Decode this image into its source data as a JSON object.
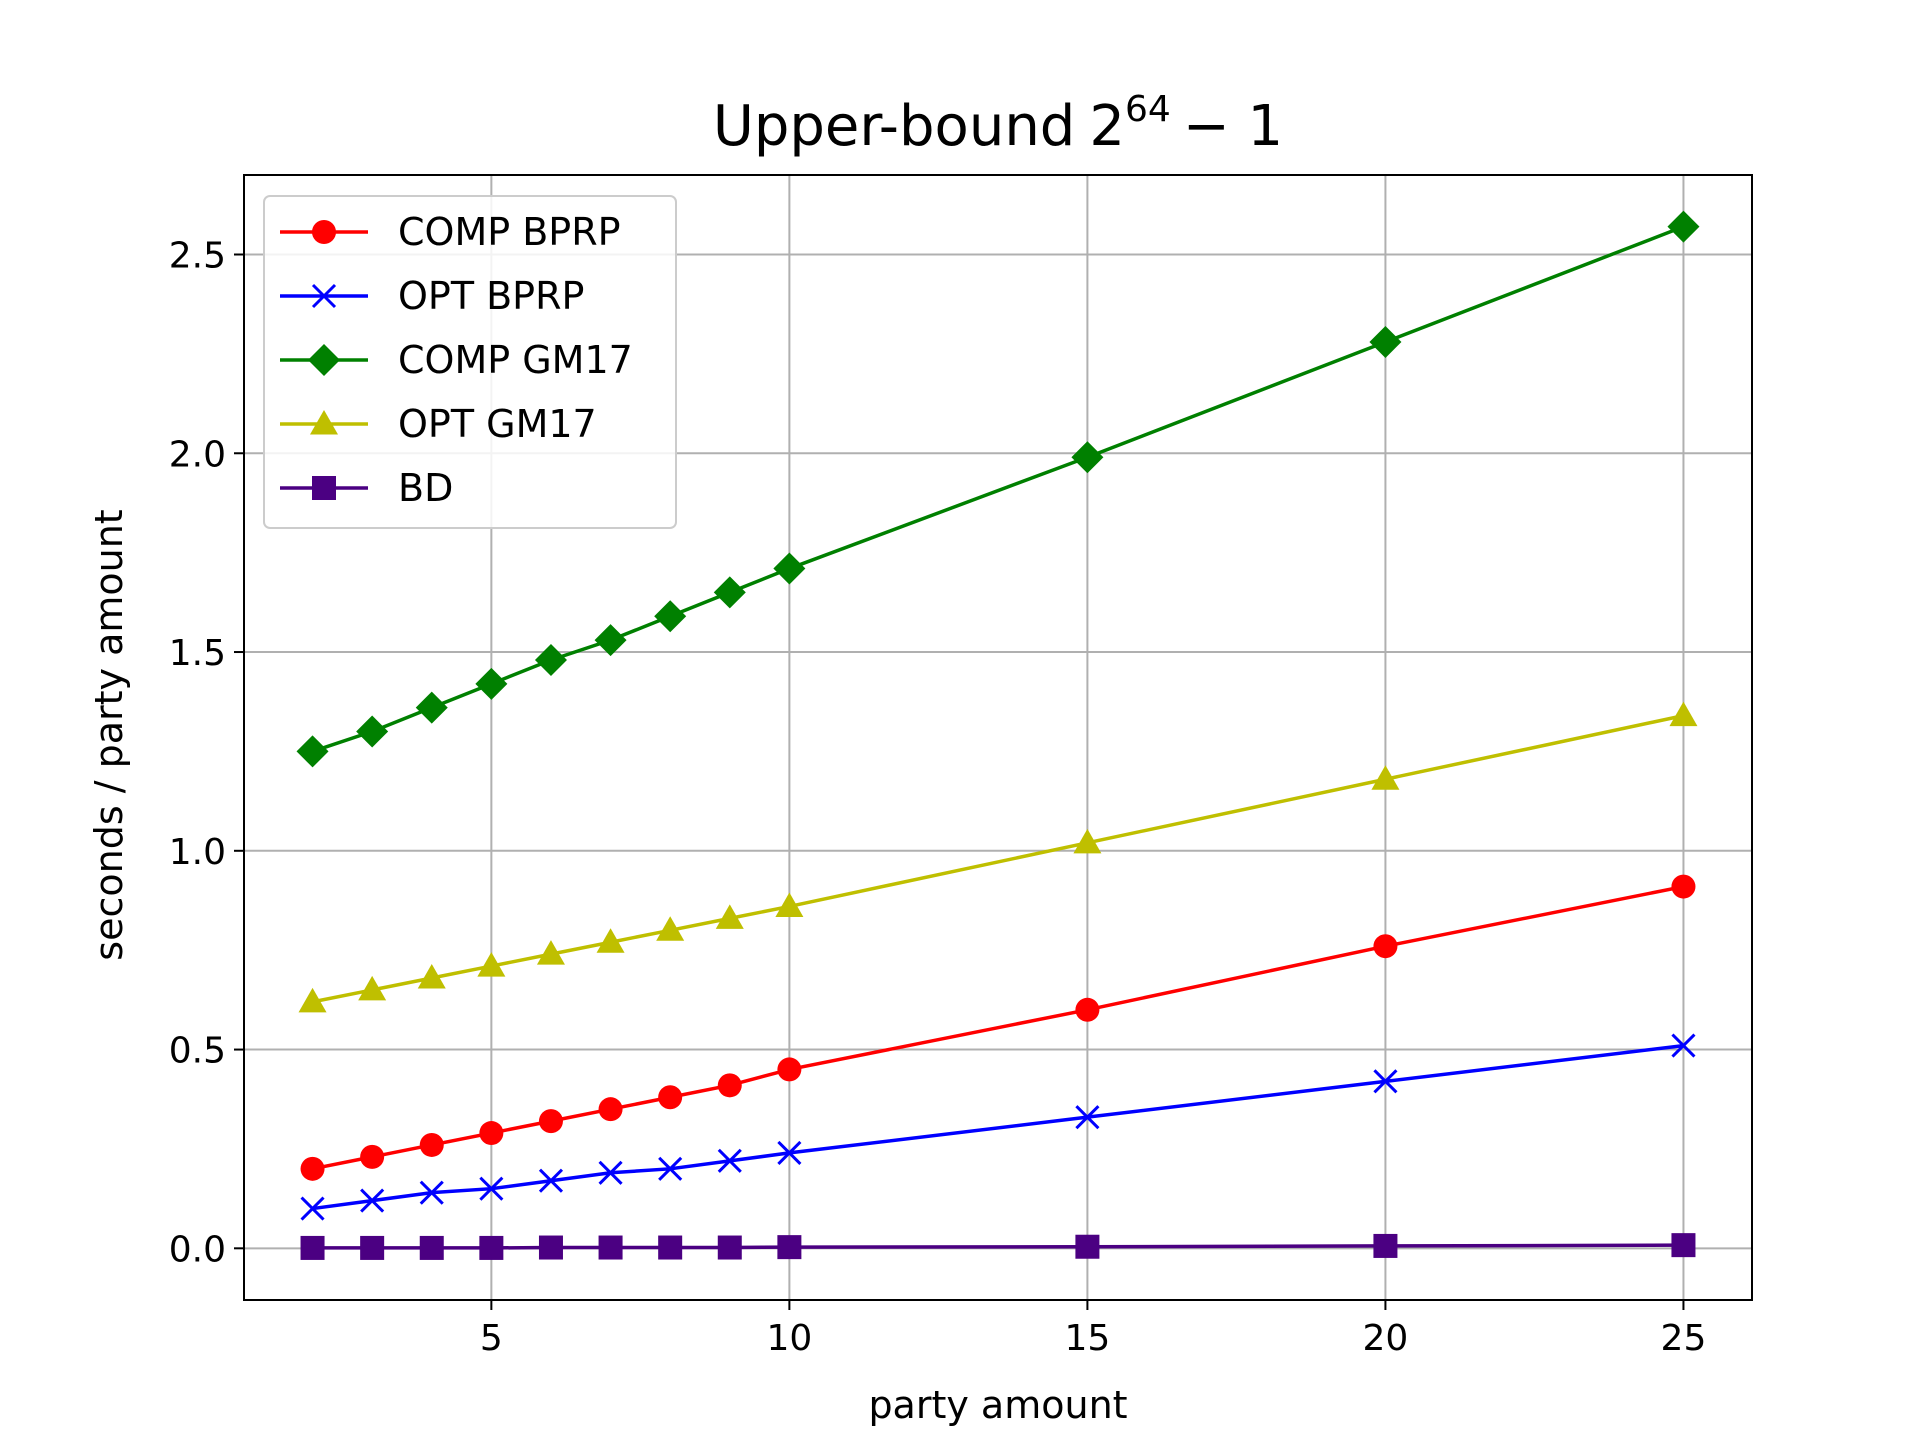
{
  "chart_data": {
    "type": "line",
    "title": "Upper-bound",
    "title_math": {
      "base": "2",
      "exponent": "64",
      "suffix": "− 1"
    },
    "xlabel": "party amount",
    "ylabel": "seconds / party amount",
    "xlim": [
      0.85,
      26.15
    ],
    "ylim": [
      -0.13,
      2.7
    ],
    "xticks": [
      5,
      10,
      15,
      20,
      25
    ],
    "yticks": [
      0.0,
      0.5,
      1.0,
      1.5,
      2.0,
      2.5
    ],
    "xtick_labels": [
      "5",
      "10",
      "15",
      "20",
      "25"
    ],
    "ytick_labels": [
      "0.0",
      "0.5",
      "1.0",
      "1.5",
      "2.0",
      "2.5"
    ],
    "grid": true,
    "legend_position": "upper-left",
    "x": [
      2,
      3,
      4,
      5,
      6,
      7,
      8,
      9,
      10,
      15,
      20,
      25
    ],
    "series": [
      {
        "name": "COMP BPRP",
        "color": "#ff0000",
        "marker": "circle",
        "values": [
          0.2,
          0.23,
          0.26,
          0.29,
          0.32,
          0.35,
          0.38,
          0.41,
          0.45,
          0.6,
          0.76,
          0.91
        ]
      },
      {
        "name": "OPT BPRP",
        "color": "#0000ff",
        "marker": "x",
        "values": [
          0.1,
          0.12,
          0.14,
          0.15,
          0.17,
          0.19,
          0.2,
          0.22,
          0.24,
          0.33,
          0.42,
          0.51
        ]
      },
      {
        "name": "COMP GM17",
        "color": "#008000",
        "marker": "diamond",
        "values": [
          1.25,
          1.3,
          1.36,
          1.42,
          1.48,
          1.53,
          1.59,
          1.65,
          1.71,
          1.99,
          2.28,
          2.57
        ]
      },
      {
        "name": "OPT GM17",
        "color": "#bfbf00",
        "marker": "triangle",
        "values": [
          0.62,
          0.65,
          0.68,
          0.71,
          0.74,
          0.77,
          0.8,
          0.83,
          0.86,
          1.02,
          1.18,
          1.34
        ]
      },
      {
        "name": "BD",
        "color": "#4b0082",
        "marker": "square",
        "values": [
          0.001,
          0.001,
          0.001,
          0.001,
          0.002,
          0.002,
          0.002,
          0.002,
          0.003,
          0.004,
          0.006,
          0.008
        ]
      }
    ]
  }
}
